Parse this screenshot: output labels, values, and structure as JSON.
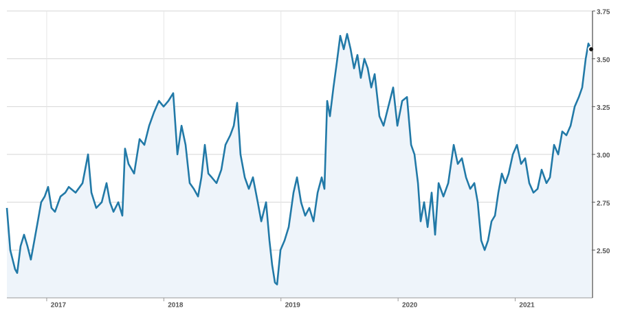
{
  "chart_data": {
    "type": "line",
    "x": [
      2016.66,
      2016.689,
      2016.73,
      2016.748,
      2016.777,
      2016.807,
      2016.836,
      2016.865,
      2016.895,
      2016.924,
      2016.953,
      2016.983,
      2017.012,
      2017.041,
      2017.071,
      2017.118,
      2017.159,
      2017.188,
      2017.247,
      2017.306,
      2017.353,
      2017.382,
      2017.423,
      2017.47,
      2017.511,
      2017.54,
      2017.57,
      2017.611,
      2017.646,
      2017.669,
      2017.699,
      2017.746,
      2017.793,
      2017.834,
      2017.875,
      2017.916,
      2017.958,
      2017.998,
      2018.039,
      2018.08,
      2018.116,
      2018.151,
      2018.186,
      2018.221,
      2018.256,
      2018.292,
      2018.321,
      2018.35,
      2018.38,
      2018.409,
      2018.45,
      2018.491,
      2018.526,
      2018.567,
      2018.597,
      2018.626,
      2018.655,
      2018.691,
      2018.726,
      2018.761,
      2018.802,
      2018.832,
      2018.873,
      2018.902,
      2018.925,
      2018.949,
      2018.967,
      2018.996,
      2019.031,
      2019.066,
      2019.107,
      2019.137,
      2019.172,
      2019.207,
      2019.242,
      2019.278,
      2019.313,
      2019.348,
      2019.371,
      2019.395,
      2019.418,
      2019.448,
      2019.477,
      2019.506,
      2019.536,
      2019.565,
      2019.595,
      2019.624,
      2019.653,
      2019.682,
      2019.712,
      2019.741,
      2019.771,
      2019.8,
      2019.841,
      2019.876,
      2019.917,
      2019.958,
      2019.994,
      2020.035,
      2020.076,
      2020.111,
      2020.14,
      2020.17,
      2020.193,
      2020.222,
      2020.252,
      2020.287,
      2020.316,
      2020.346,
      2020.387,
      2020.428,
      2020.475,
      2020.51,
      2020.545,
      2020.58,
      2020.616,
      2020.651,
      2020.68,
      2020.71,
      2020.739,
      2020.768,
      2020.798,
      2020.827,
      2020.856,
      2020.886,
      2020.915,
      2020.944,
      2020.98,
      2021.015,
      2021.05,
      2021.085,
      2021.12,
      2021.156,
      2021.191,
      2021.226,
      2021.267,
      2021.297,
      2021.332,
      2021.367,
      2021.402,
      2021.437,
      2021.473,
      2021.508,
      2021.543,
      2021.572,
      2021.602,
      2021.625,
      2021.649
    ],
    "series": [
      {
        "color": "#2179a7",
        "values": [
          2.72,
          2.5,
          2.4,
          2.38,
          2.52,
          2.58,
          2.52,
          2.45,
          2.55,
          2.65,
          2.75,
          2.78,
          2.83,
          2.72,
          2.7,
          2.78,
          2.8,
          2.83,
          2.8,
          2.85,
          3.0,
          2.8,
          2.72,
          2.75,
          2.85,
          2.75,
          2.7,
          2.75,
          2.68,
          3.03,
          2.95,
          2.9,
          3.08,
          3.05,
          3.15,
          3.22,
          3.28,
          3.25,
          3.28,
          3.32,
          3.0,
          3.15,
          3.05,
          2.85,
          2.82,
          2.78,
          2.88,
          3.05,
          2.9,
          2.88,
          2.85,
          2.92,
          3.05,
          3.1,
          3.15,
          3.27,
          3.0,
          2.88,
          2.82,
          2.88,
          2.75,
          2.65,
          2.75,
          2.55,
          2.42,
          2.33,
          2.32,
          2.5,
          2.55,
          2.62,
          2.8,
          2.88,
          2.75,
          2.68,
          2.72,
          2.65,
          2.8,
          2.88,
          2.82,
          3.28,
          3.2,
          3.35,
          3.48,
          3.62,
          3.55,
          3.63,
          3.55,
          3.45,
          3.52,
          3.4,
          3.5,
          3.45,
          3.35,
          3.42,
          3.2,
          3.15,
          3.25,
          3.35,
          3.15,
          3.28,
          3.3,
          3.05,
          3.0,
          2.85,
          2.65,
          2.75,
          2.62,
          2.8,
          2.58,
          2.85,
          2.78,
          2.85,
          3.05,
          2.95,
          2.98,
          2.88,
          2.82,
          2.85,
          2.75,
          2.55,
          2.5,
          2.55,
          2.65,
          2.68,
          2.8,
          2.9,
          2.85,
          2.9,
          3.0,
          3.05,
          2.95,
          2.98,
          2.85,
          2.8,
          2.82,
          2.92,
          2.85,
          2.88,
          3.05,
          3.0,
          3.12,
          3.1,
          3.15,
          3.25,
          3.3,
          3.35,
          3.5,
          3.58,
          3.55
        ]
      }
    ],
    "xlim": [
      2016.66,
      2021.66
    ],
    "xticks": [
      {
        "value": 2017,
        "label": "2017"
      },
      {
        "value": 2018,
        "label": "2018"
      },
      {
        "value": 2019,
        "label": "2019"
      },
      {
        "value": 2020,
        "label": "2020"
      },
      {
        "value": 2021,
        "label": "2021"
      }
    ],
    "ylim": [
      2.25,
      3.75
    ],
    "yticks": [
      {
        "value": 2.5,
        "label": "2.50"
      },
      2.75,
      {
        "value": 3,
        "label": "3.00"
      },
      3.25,
      {
        "value": 3.5,
        "label": "3.50"
      },
      3.75
    ],
    "grid": true
  }
}
